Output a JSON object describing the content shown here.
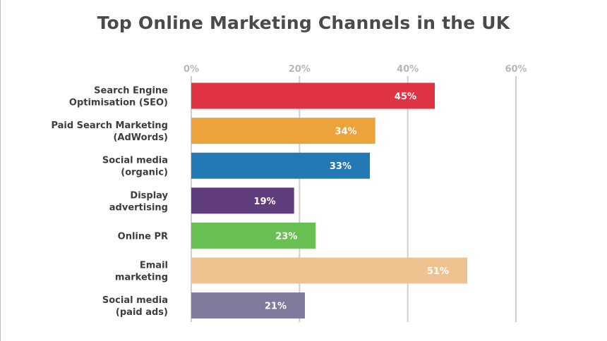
{
  "chart_data": {
    "type": "bar",
    "orientation": "horizontal",
    "title": "Top Online Marketing Channels in the UK",
    "xlabel": "",
    "ylabel": "",
    "xlim": [
      0,
      60
    ],
    "ticks": [
      0,
      20,
      40,
      60
    ],
    "tick_labels": [
      "0%",
      "20%",
      "40%",
      "60%"
    ],
    "grid": true,
    "categories": [
      [
        "Search Engine",
        "Optimisation (SEO)"
      ],
      [
        "Paid Search Marketing",
        "(AdWords)"
      ],
      [
        "Social media",
        "(organic)"
      ],
      [
        "Display",
        "advertising"
      ],
      [
        "Online PR"
      ],
      [
        "Email",
        "marketing"
      ],
      [
        "Social media",
        "(paid ads)"
      ]
    ],
    "values": [
      45,
      34,
      33,
      19,
      23,
      51,
      21
    ],
    "value_labels": [
      "45%",
      "34%",
      "33%",
      "19%",
      "23%",
      "51%",
      "21%"
    ],
    "colors": [
      "#e03445",
      "#eda33c",
      "#2279b3",
      "#603d7c",
      "#68bf52",
      "#efc38f",
      "#7f7b9c"
    ]
  }
}
